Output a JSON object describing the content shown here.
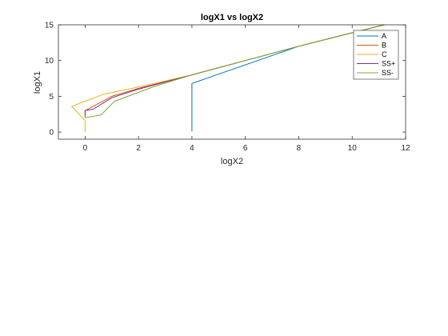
{
  "chart_data": {
    "type": "line",
    "title": "logX1 vs logX2",
    "xlabel": "logX2",
    "ylabel": "logX1",
    "xlim": [
      -1,
      12
    ],
    "ylim": [
      -1,
      15
    ],
    "xticks": [
      0,
      2,
      4,
      6,
      8,
      10,
      12
    ],
    "yticks": [
      0,
      5,
      10,
      15
    ],
    "xtick_labels": [
      "0",
      "2",
      "4",
      "6",
      "8",
      "10",
      "12"
    ],
    "ytick_labels": [
      "0",
      "5",
      "10",
      "15"
    ],
    "grid": false,
    "legend": "top-right",
    "series": [
      {
        "name": "A",
        "color": "#0072BD",
        "x": [
          4.0,
          4.0,
          8.0,
          10.0
        ],
        "y": [
          0.1,
          6.8,
          12.0,
          13.9
        ]
      },
      {
        "name": "B",
        "color": "#D95319",
        "x": [
          0.0,
          0.0,
          1.0,
          2.0,
          4.0,
          6.0,
          8.0,
          11.2
        ],
        "y": [
          2.1,
          3.0,
          5.0,
          6.1,
          8.0,
          10.0,
          12.0,
          15.0
        ]
      },
      {
        "name": "C",
        "color": "#EDB120",
        "x": [
          0.0,
          0.0,
          -0.5,
          0.0,
          0.7,
          2.0,
          4.0,
          6.0,
          8.0,
          11.2
        ],
        "y": [
          0.0,
          1.6,
          3.6,
          4.3,
          5.3,
          6.3,
          8.0,
          10.0,
          12.0,
          15.0
        ]
      },
      {
        "name": "SS+",
        "color": "#7E2F8E",
        "x": [
          0.0,
          0.0,
          0.3,
          1.0,
          2.0,
          4.0,
          6.0,
          8.0,
          11.2
        ],
        "y": [
          2.1,
          3.0,
          3.2,
          4.8,
          6.0,
          8.0,
          10.0,
          12.0,
          15.0
        ]
      },
      {
        "name": "SS-",
        "color": "#77AC30",
        "x": [
          0.0,
          0.0,
          0.6,
          1.1,
          2.6,
          4.0,
          6.0,
          8.0,
          11.2
        ],
        "y": [
          2.3,
          2.0,
          2.4,
          4.3,
          6.4,
          8.0,
          10.0,
          12.0,
          15.0
        ]
      }
    ]
  }
}
